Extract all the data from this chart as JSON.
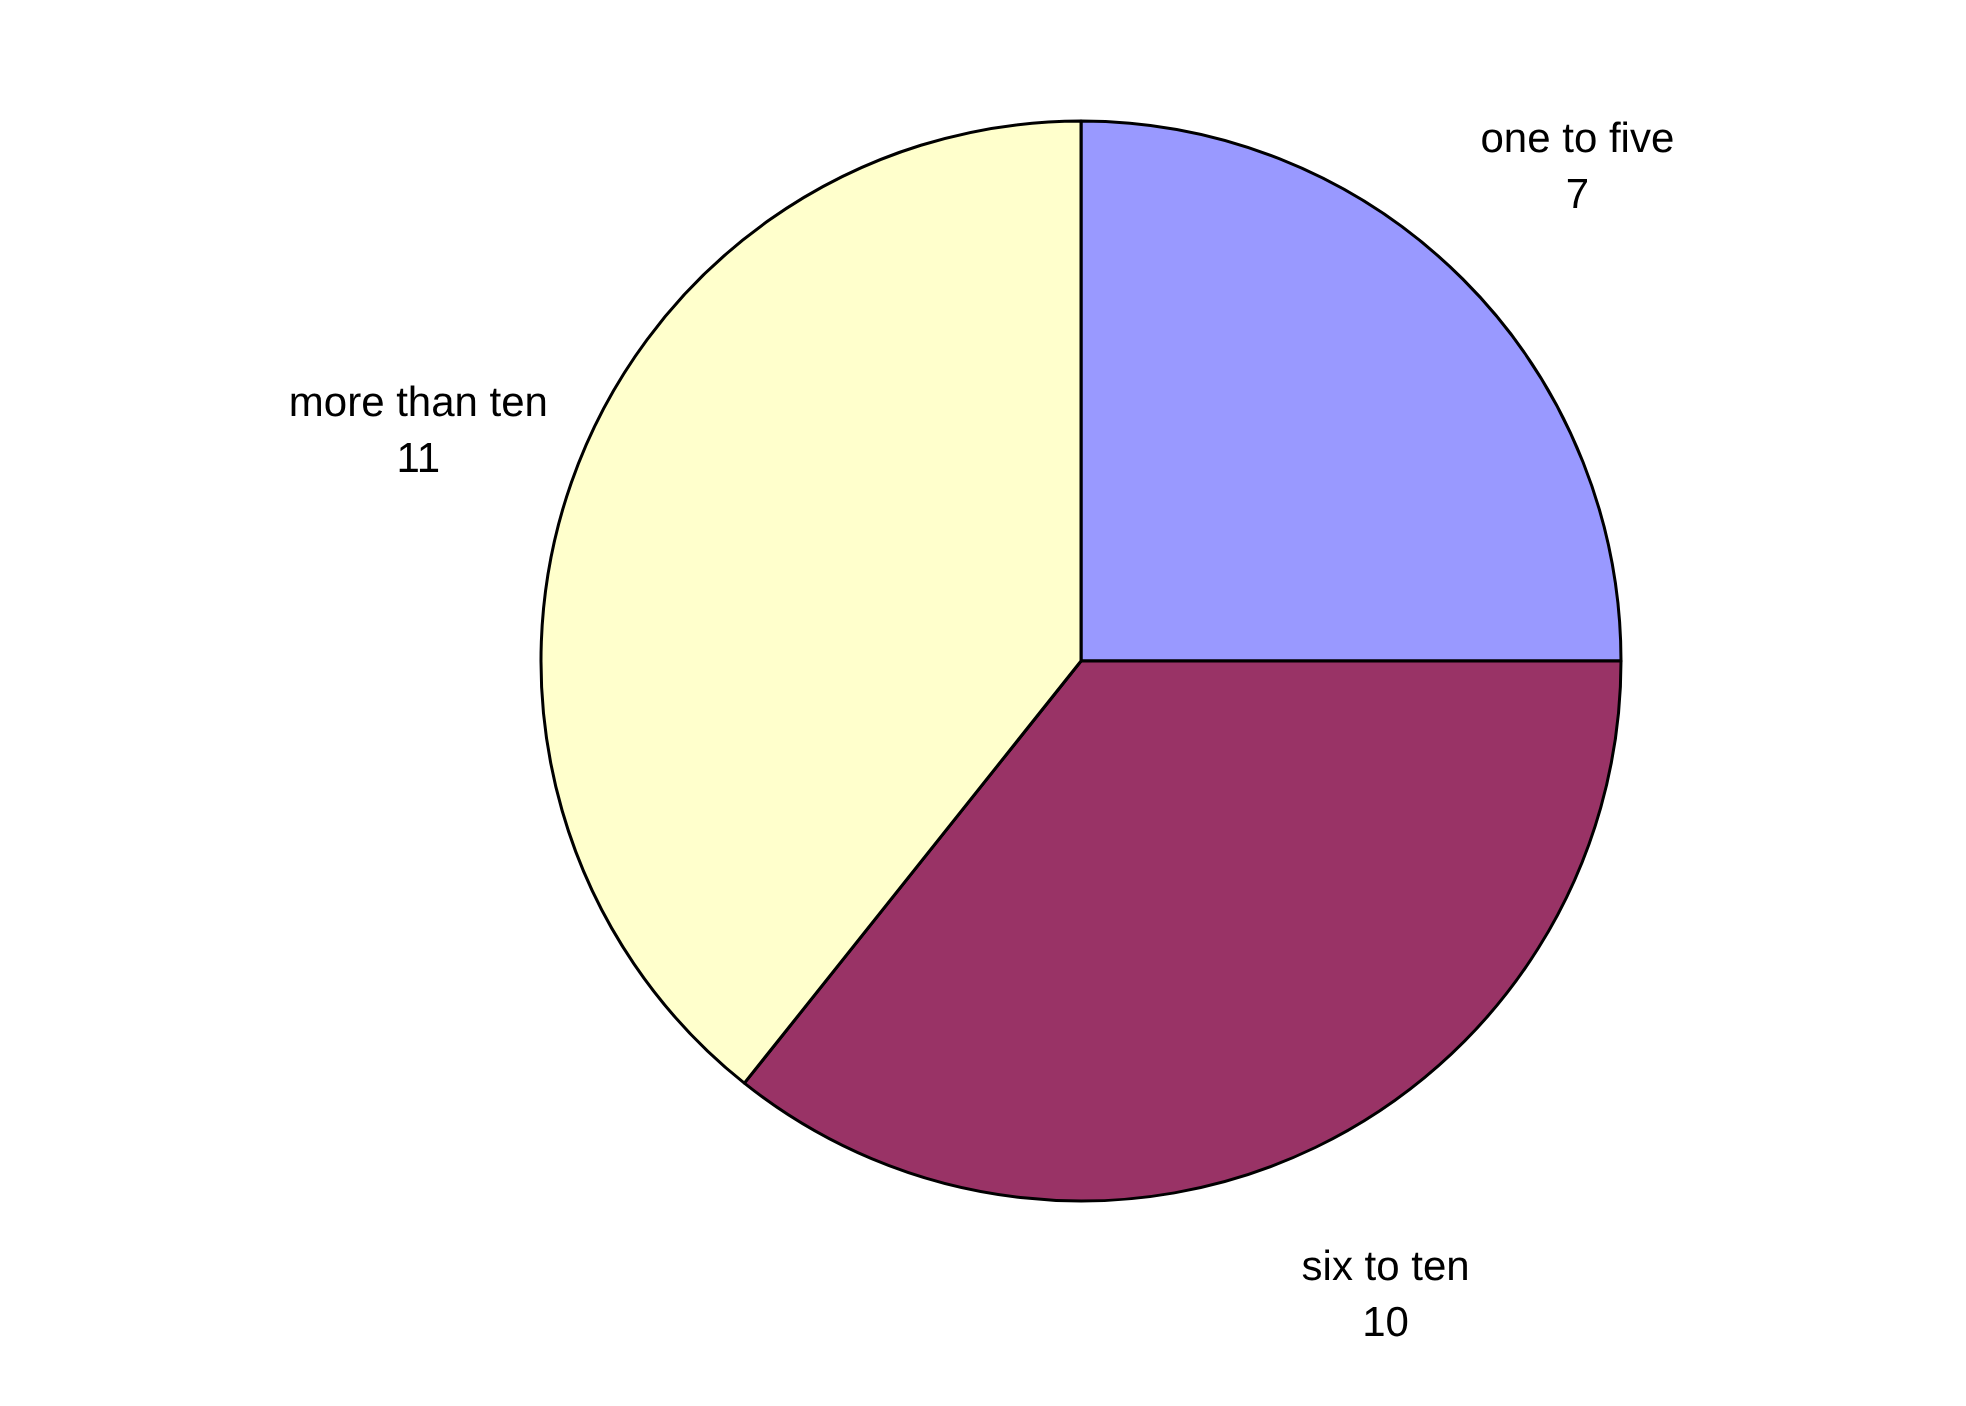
{
  "chart_data": {
    "type": "pie",
    "categories": [
      "one to five",
      "six to ten",
      "more than ten"
    ],
    "values": [
      7,
      10,
      11
    ],
    "colors": [
      "#9999ff",
      "#993366",
      "#ffffcc"
    ],
    "data_labels": true
  }
}
